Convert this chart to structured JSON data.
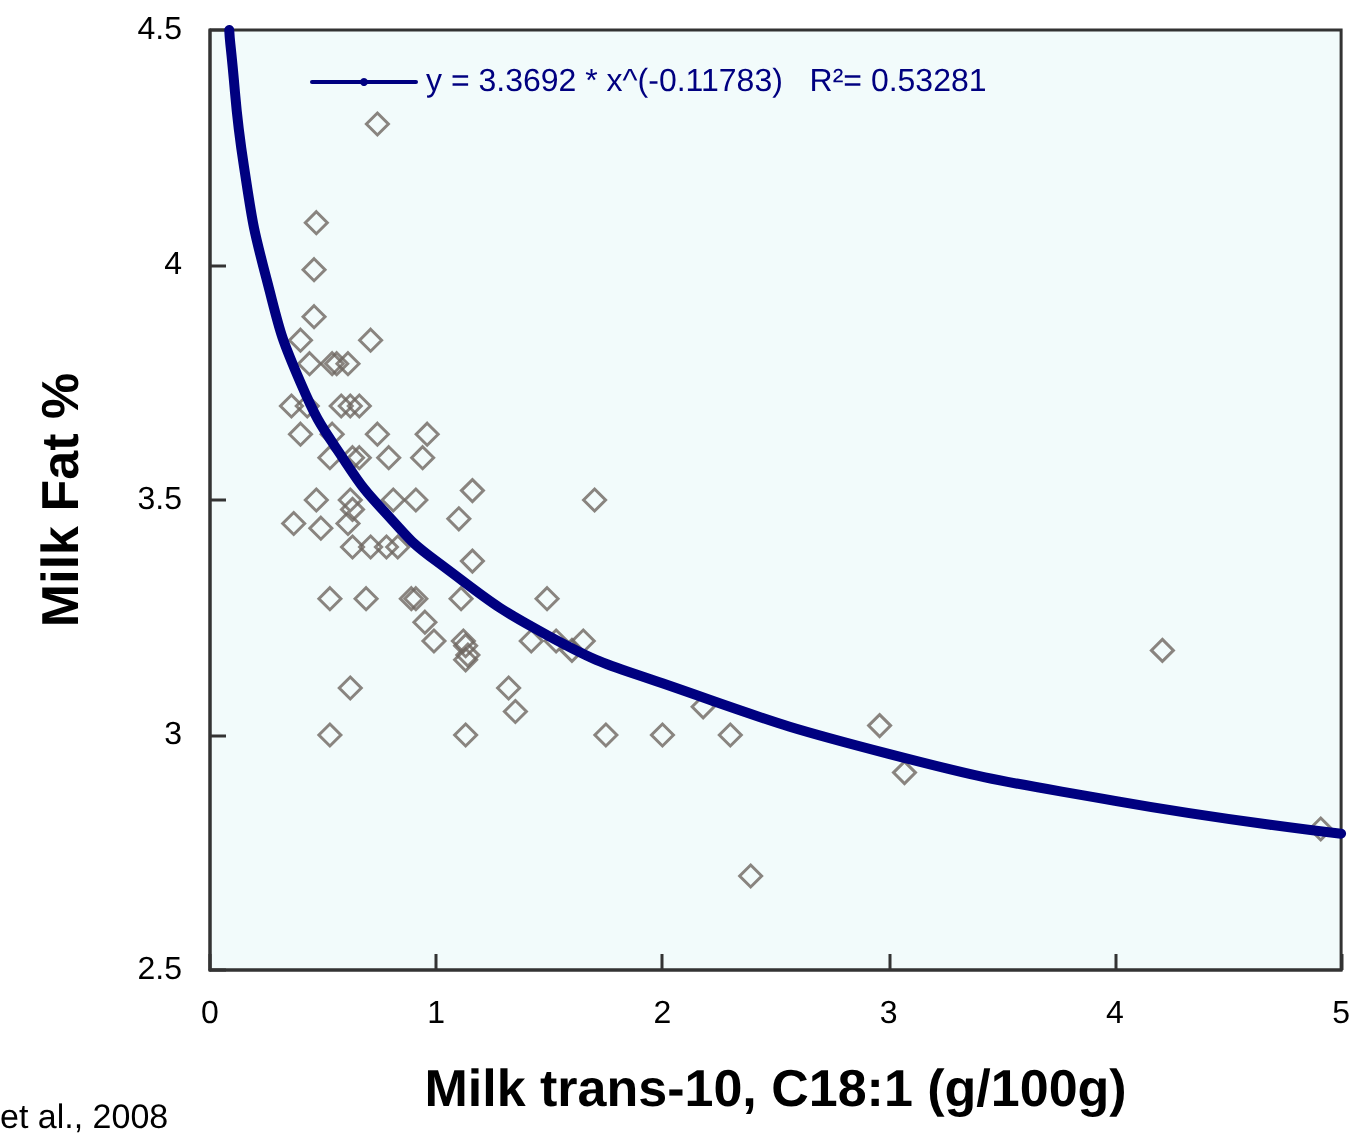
{
  "chart_data": {
    "type": "scatter",
    "xlabel": "Milk trans-10, C18:1 (g/100g)",
    "ylabel": "Milk Fat %",
    "annotations": [
      "et al., 2008"
    ],
    "xlim": [
      0,
      5
    ],
    "xticks": [
      0,
      1,
      2,
      3,
      4,
      5
    ],
    "ylim": [
      2.5,
      4.5
    ],
    "yticks": [
      2.5,
      3,
      3.5,
      4,
      4.5
    ],
    "grid": false,
    "legend": "top left",
    "marker": "diamond",
    "series": [
      {
        "color": "#6e6660",
        "x": [
          0.47,
          0.46,
          0.46,
          0.4,
          0.71,
          0.44,
          0.56,
          0.61,
          0.54,
          0.36,
          0.43,
          0.58,
          0.62,
          0.66,
          0.4,
          0.54,
          0.74,
          0.96,
          0.53,
          0.63,
          0.66,
          0.79,
          0.94,
          0.47,
          0.62,
          0.81,
          0.91,
          1.16,
          1.1,
          0.37,
          0.49,
          0.61,
          0.63,
          0.63,
          0.71,
          0.78,
          0.83,
          1.16,
          0.53,
          0.69,
          0.89,
          0.91,
          1.11,
          1.49,
          0.95,
          0.99,
          1.12,
          1.13,
          1.14,
          1.13,
          1.42,
          1.53,
          1.65,
          1.6,
          0.62,
          1.32,
          1.35,
          0.53,
          1.13,
          1.7,
          0.74,
          1.75,
          2.0,
          2.18,
          2.3,
          2.39,
          2.96,
          3.07,
          4.21,
          4.91
        ],
        "values": [
          4.09,
          3.99,
          3.89,
          3.84,
          3.84,
          3.79,
          3.79,
          3.79,
          3.79,
          3.7,
          3.7,
          3.7,
          3.7,
          3.7,
          3.64,
          3.64,
          3.64,
          3.64,
          3.59,
          3.59,
          3.59,
          3.59,
          3.59,
          3.5,
          3.5,
          3.5,
          3.5,
          3.52,
          3.46,
          3.45,
          3.44,
          3.45,
          3.48,
          3.4,
          3.4,
          3.4,
          3.4,
          3.37,
          3.29,
          3.29,
          3.29,
          3.29,
          3.29,
          3.29,
          3.24,
          3.2,
          3.2,
          3.19,
          3.17,
          3.16,
          3.2,
          3.2,
          3.2,
          3.18,
          3.1,
          3.1,
          3.05,
          3.0,
          3.0,
          3.5,
          4.3,
          3.0,
          3.0,
          3.06,
          3.0,
          2.7,
          3.02,
          2.92,
          3.18,
          2.8
        ]
      },
      {
        "type": "line",
        "name": "y = 3.3692 * x^(-0.11783)   R²= 0.53281",
        "color": "#000080",
        "line_style": "solid",
        "marker": "none",
        "x": [
          0.085,
          0.09,
          0.15,
          0.25,
          0.4,
          0.6,
          0.8,
          1,
          1.5,
          2,
          3,
          4,
          5
        ],
        "values": [
          4.5,
          4.47,
          4.21,
          3.97,
          3.75,
          3.58,
          3.46,
          3.37,
          3.21,
          3.11,
          2.96,
          2.86,
          2.79
        ]
      }
    ]
  }
}
